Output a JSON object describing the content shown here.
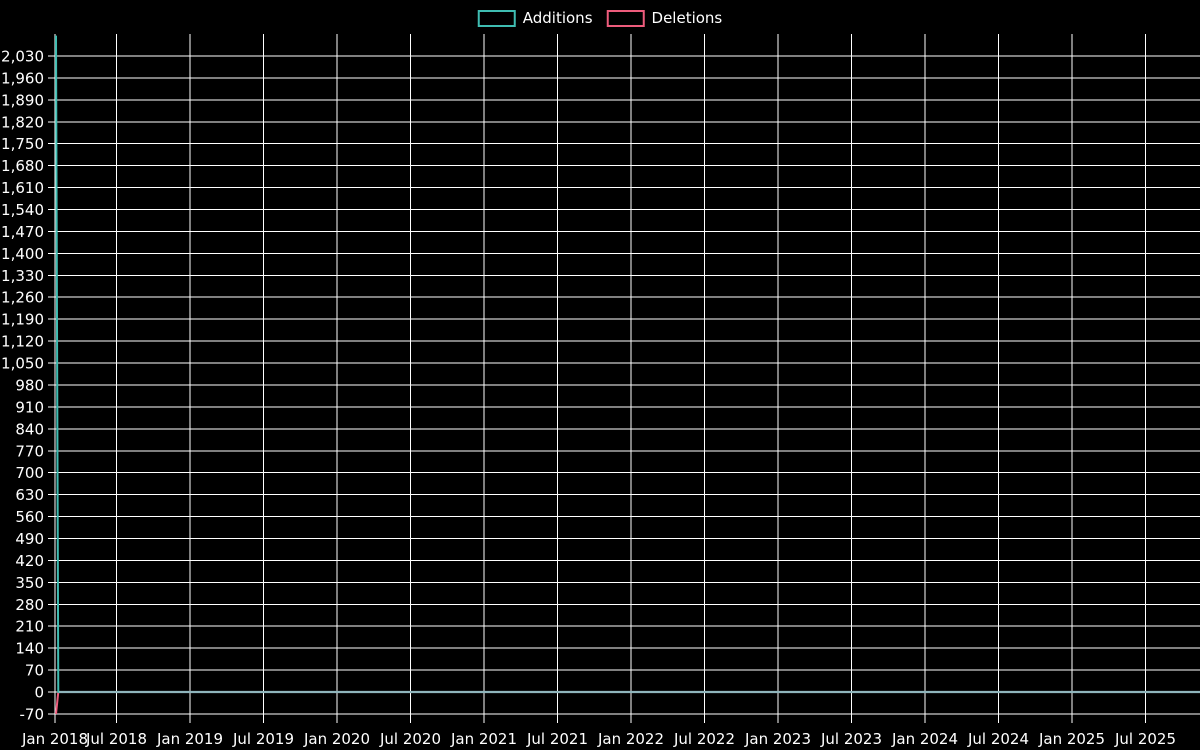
{
  "legend": {
    "items": [
      {
        "label": "Additions",
        "color": "#3fbdb2"
      },
      {
        "label": "Deletions",
        "color": "#ee5c7c"
      }
    ]
  },
  "chart_data": {
    "type": "line",
    "title": "",
    "xlabel": "",
    "ylabel": "",
    "legend_position": "top-center",
    "grid": true,
    "x_ticks": [
      "Jan 2018",
      "Jul 2018",
      "Jan 2019",
      "Jul 2019",
      "Jan 2020",
      "Jul 2020",
      "Jan 2021",
      "Jul 2021",
      "Jan 2022",
      "Jul 2022",
      "Jan 2023",
      "Jul 2023",
      "Jan 2024",
      "Jul 2024",
      "Jan 2025",
      "Jul 2025"
    ],
    "y_ticks": [
      "2,030",
      "1,960",
      "1,890",
      "1,820",
      "1,750",
      "1,680",
      "1,610",
      "1,540",
      "1,470",
      "1,400",
      "1,330",
      "1,260",
      "1,190",
      "1,120",
      "1,050",
      "980",
      "910",
      "840",
      "770",
      "700",
      "630",
      "560",
      "490",
      "420",
      "350",
      "280",
      "210",
      "140",
      "70",
      "0",
      "-70"
    ],
    "y_tick_step": 70,
    "ylim": [
      -70,
      2100
    ],
    "series": [
      {
        "name": "Additions",
        "color": "#3fbdb2",
        "points": [
          {
            "t": 0.0,
            "v": 2095
          },
          {
            "t": 0.002,
            "v": 0
          },
          {
            "t": 1.0,
            "v": 0
          }
        ]
      },
      {
        "name": "Deletions",
        "color": "#ee5c7c",
        "points": [
          {
            "t": 0.0,
            "v": -70
          },
          {
            "t": 0.002,
            "v": 0
          },
          {
            "t": 1.0,
            "v": 0
          }
        ]
      }
    ],
    "colors": {
      "background": "#000000",
      "grid": "#ffffff",
      "axis": "#ffffff",
      "text": "#ffffff",
      "flat_zero_line": "#8fb5bc"
    }
  }
}
